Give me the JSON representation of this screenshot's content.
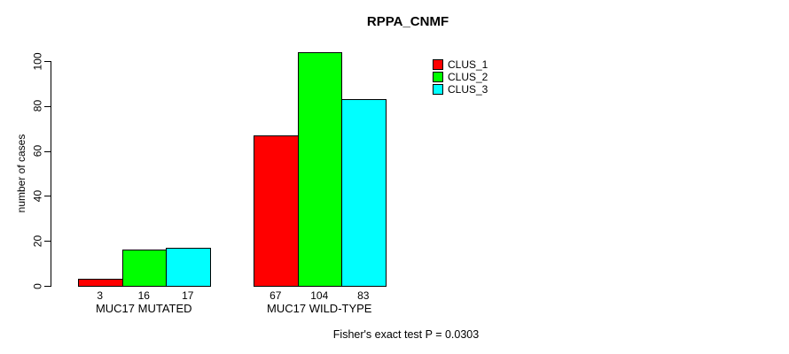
{
  "chart_data": {
    "type": "bar",
    "title": "RPPA_CNMF",
    "ylabel": "number of cases",
    "xlabel": "",
    "ylim": [
      0,
      100
    ],
    "yticks": [
      0,
      20,
      40,
      60,
      80,
      100
    ],
    "grid": false,
    "legend_position": "top-right",
    "categories": [
      "MUC17 MUTATED",
      "MUC17 WILD-TYPE"
    ],
    "series": [
      {
        "name": "CLUS_1",
        "color": "#ff0000",
        "values": [
          3,
          67
        ]
      },
      {
        "name": "CLUS_2",
        "color": "#00ff00",
        "values": [
          16,
          104
        ]
      },
      {
        "name": "CLUS_3",
        "color": "#00ffff",
        "values": [
          17,
          83
        ]
      }
    ],
    "bar_value_labels": [
      [
        "3",
        "16",
        "17"
      ],
      [
        "67",
        "104",
        "83"
      ]
    ],
    "annotation": "Fisher's exact test P = 0.0303"
  }
}
